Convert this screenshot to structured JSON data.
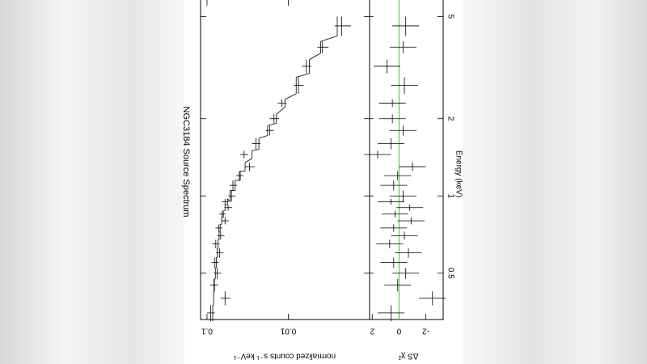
{
  "chart_data": {
    "type": "spectrum",
    "title": "NGC3184 Source Spectrum",
    "x_label": "Energy (keV)",
    "y_label": "normalized counts s⁻¹ keV⁻¹",
    "y2_label": "ΔS χ²",
    "log_x": true,
    "log_y": true,
    "xlim": [
      0.33,
      5.8
    ],
    "xticks": [
      0.5,
      1,
      2,
      5
    ],
    "ylim": [
      0.001,
      0.12
    ],
    "yticks": [
      0.1,
      0.01
    ],
    "y2lim": [
      -3.3,
      2.2
    ],
    "y2ticks": [
      2,
      0,
      -2
    ],
    "zero_line_color": "#33cc33",
    "x": [
      0.35,
      0.4,
      0.45,
      0.5,
      0.55,
      0.6,
      0.65,
      0.7,
      0.75,
      0.8,
      0.85,
      0.9,
      0.95,
      1.0,
      1.1,
      1.2,
      1.3,
      1.45,
      1.6,
      1.8,
      2.0,
      2.3,
      2.7,
      3.2,
      3.8,
      4.6
    ],
    "x_err": [
      0.025,
      0.025,
      0.025,
      0.025,
      0.025,
      0.025,
      0.025,
      0.025,
      0.025,
      0.025,
      0.025,
      0.025,
      0.025,
      0.05,
      0.05,
      0.05,
      0.05,
      0.05,
      0.08,
      0.08,
      0.08,
      0.08,
      0.2,
      0.2,
      0.2,
      0.4
    ],
    "values": [
      0.09,
      0.06,
      0.082,
      0.075,
      0.08,
      0.07,
      0.078,
      0.068,
      0.072,
      0.06,
      0.065,
      0.055,
      0.06,
      0.05,
      0.048,
      0.04,
      0.03,
      0.035,
      0.025,
      0.017,
      0.015,
      0.012,
      0.0075,
      0.006,
      0.0038,
      0.0022
    ],
    "errors": [
      0.01,
      0.008,
      0.009,
      0.008,
      0.008,
      0.007,
      0.008,
      0.007,
      0.007,
      0.006,
      0.006,
      0.006,
      0.006,
      0.005,
      0.005,
      0.004,
      0.004,
      0.004,
      0.003,
      0.002,
      0.002,
      0.0015,
      0.001,
      0.0008,
      0.0006,
      0.0005
    ],
    "model": [
      0.085,
      0.083,
      0.081,
      0.079,
      0.077,
      0.075,
      0.073,
      0.071,
      0.069,
      0.066,
      0.063,
      0.06,
      0.056,
      0.052,
      0.045,
      0.039,
      0.034,
      0.028,
      0.023,
      0.018,
      0.014,
      0.011,
      0.008,
      0.0055,
      0.004,
      0.0025
    ],
    "residuals": [
      0.6,
      -2.5,
      0.1,
      -0.5,
      0.4,
      -0.7,
      0.7,
      -0.4,
      0.4,
      -0.9,
      0.3,
      -0.8,
      0.6,
      -0.3,
      0.4,
      0.1,
      -1,
      1.6,
      0.6,
      -0.3,
      0.5,
      0.5,
      -0.4,
      0.9,
      -0.3,
      -0.5
    ],
    "residual_errors": [
      1,
      1,
      1,
      1,
      1,
      1,
      1,
      1,
      1,
      1,
      1,
      1,
      1,
      1,
      1,
      1,
      1,
      1,
      1,
      1,
      1,
      1,
      1,
      1,
      1,
      1
    ]
  }
}
